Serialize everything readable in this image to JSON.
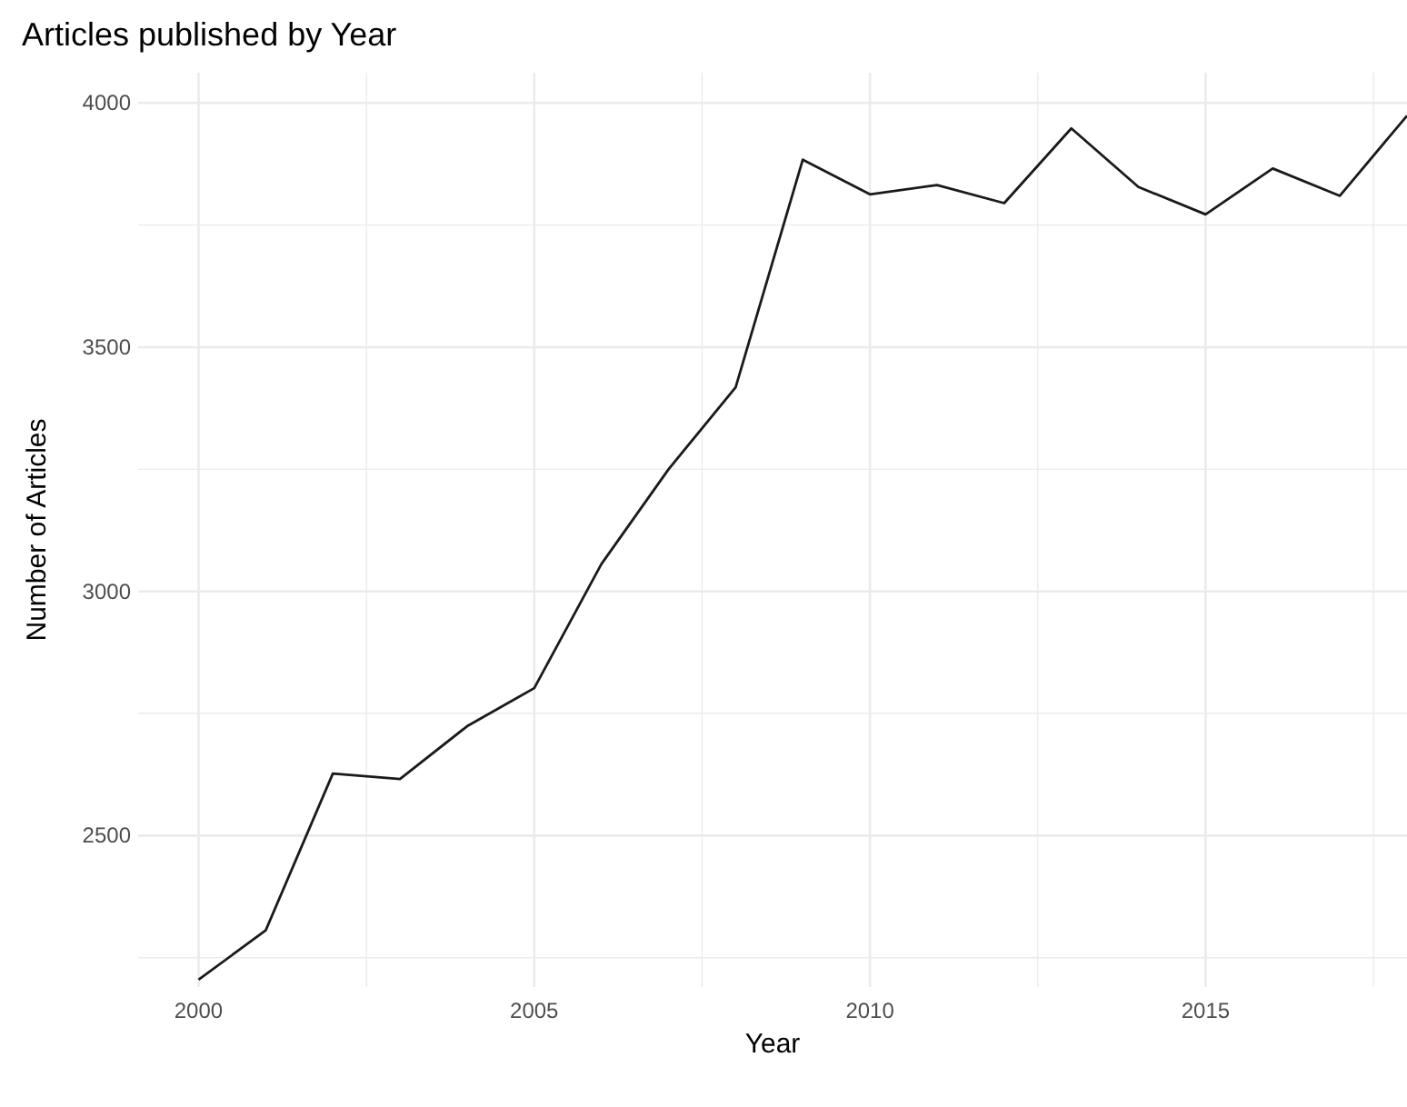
{
  "chart_data": {
    "type": "line",
    "title": "Articles published by Year",
    "xlabel": "Year",
    "ylabel": "Number of Articles",
    "x": [
      2000,
      2001,
      2002,
      2003,
      2004,
      2005,
      2006,
      2007,
      2008,
      2009,
      2010,
      2011,
      2012,
      2013,
      2014,
      2015,
      2016,
      2017,
      2018
    ],
    "series": [
      {
        "color": "#1a1a1a",
        "values": [
          2205,
          2306,
          2627,
          2616,
          2724,
          2802,
          3056,
          3250,
          3418,
          3884,
          3813,
          3832,
          3795,
          3948,
          3828,
          3772,
          3866,
          3810,
          3974
        ]
      }
    ],
    "xlim": [
      1999.1,
      2018
    ],
    "ylim": [
      2190,
      4062
    ],
    "xticks": [
      2000,
      {
        "value": 2002.5,
        "label": null
      },
      2005,
      {
        "value": 2007.5,
        "label": null
      },
      2010,
      {
        "value": 2012.5,
        "label": null
      },
      2015,
      {
        "value": 2017.5,
        "label": null
      }
    ],
    "yticks": [
      {
        "value": 2250,
        "label": null
      },
      2500,
      {
        "value": 2750,
        "label": null
      },
      3000,
      {
        "value": 3250,
        "label": null
      },
      3500,
      {
        "value": 3750,
        "label": null
      },
      4000
    ],
    "grid": true,
    "marker": "none",
    "line_style": "solid"
  }
}
